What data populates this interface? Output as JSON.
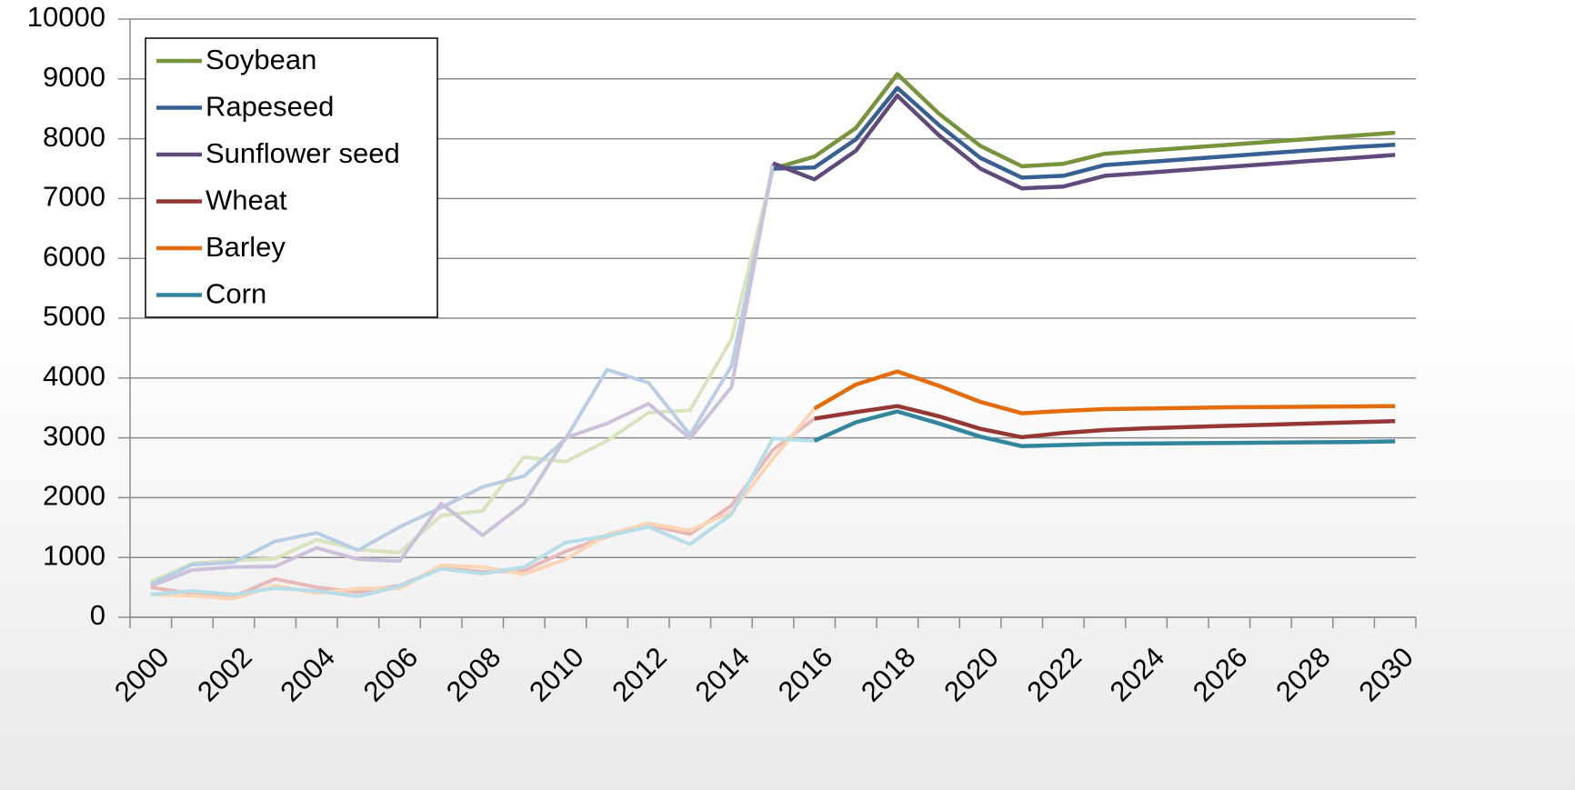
{
  "chart_data": {
    "type": "line",
    "categories": [
      "2000",
      null,
      "2002",
      null,
      "2004",
      null,
      "2006",
      null,
      "2008",
      null,
      "2010",
      null,
      "2012",
      null,
      "2014",
      null,
      "2016",
      null,
      "2018",
      null,
      "2020",
      null,
      "2022",
      null,
      "2024",
      null,
      "2026",
      null,
      "2028",
      null,
      "2030"
    ],
    "ylim": [
      0,
      10000
    ],
    "yticks": [
      0,
      1000,
      2000,
      3000,
      4000,
      5000,
      6000,
      7000,
      8000,
      9000,
      10000
    ],
    "grid": true,
    "legend": "upper left",
    "series": [
      {
        "name": "Soybean",
        "color": "#77933c",
        "history_color": "#d7e4bd",
        "history": [
          590,
          900,
          950,
          980,
          1300,
          1130,
          1080,
          1700,
          1780,
          2680,
          2600,
          2950,
          3420,
          3460,
          4650,
          null,
          null,
          null,
          null,
          null,
          null,
          null,
          null,
          null,
          null,
          null,
          null,
          null,
          null,
          null,
          null
        ],
        "values": [
          null,
          null,
          null,
          null,
          null,
          null,
          null,
          null,
          null,
          null,
          null,
          null,
          null,
          null,
          null,
          7500,
          7700,
          8180,
          9080,
          8420,
          7880,
          7540,
          7580,
          7750,
          7800,
          7850,
          7900,
          7950,
          8000,
          8050,
          8100
        ]
      },
      {
        "name": "Rapeseed",
        "color": "#376092",
        "history_color": "#b9cde5",
        "history": [
          550,
          880,
          920,
          1270,
          1410,
          1120,
          1510,
          1830,
          2180,
          2360,
          2980,
          4140,
          3920,
          3050,
          4200,
          null,
          null,
          null,
          null,
          null,
          null,
          null,
          null,
          null,
          null,
          null,
          null,
          null,
          null,
          null,
          null
        ],
        "values": [
          null,
          null,
          null,
          null,
          null,
          null,
          null,
          null,
          null,
          null,
          null,
          null,
          null,
          null,
          null,
          7500,
          7520,
          7990,
          8850,
          8230,
          7680,
          7350,
          7380,
          7560,
          7610,
          7660,
          7710,
          7760,
          7810,
          7860,
          7900
        ]
      },
      {
        "name": "Sunflower seed",
        "color": "#604a7b",
        "history_color": "#ccc1da",
        "history": [
          520,
          790,
          840,
          850,
          1160,
          970,
          940,
          1900,
          1370,
          1900,
          3000,
          3240,
          3570,
          2990,
          3850,
          null,
          null,
          null,
          null,
          null,
          null,
          null,
          null,
          null,
          null,
          null,
          null,
          null,
          null,
          null,
          null
        ],
        "values": [
          null,
          null,
          null,
          null,
          null,
          null,
          null,
          null,
          null,
          null,
          null,
          null,
          null,
          null,
          null,
          7590,
          7320,
          7800,
          8720,
          8060,
          7500,
          7170,
          7200,
          7380,
          7430,
          7480,
          7530,
          7580,
          7630,
          7680,
          7730
        ]
      },
      {
        "name": "Wheat",
        "color": "#953735",
        "history_color": "#e6b9b8",
        "history": [
          500,
          400,
          350,
          640,
          500,
          420,
          530,
          820,
          760,
          780,
          1100,
          1350,
          1540,
          1390,
          1870,
          2800,
          null,
          null,
          null,
          null,
          null,
          null,
          null,
          null,
          null,
          null,
          null,
          null,
          null,
          null,
          null
        ],
        "values": [
          null,
          null,
          null,
          null,
          null,
          null,
          null,
          null,
          null,
          null,
          null,
          null,
          null,
          null,
          null,
          null,
          3320,
          3430,
          3530,
          3360,
          3150,
          3010,
          3080,
          3130,
          3160,
          3180,
          3200,
          3220,
          3240,
          3260,
          3280
        ]
      },
      {
        "name": "Barley",
        "color": "#e46c0a",
        "history_color": "#fcd5b5",
        "history": [
          380,
          360,
          310,
          530,
          400,
          480,
          480,
          870,
          840,
          720,
          970,
          1380,
          1570,
          1450,
          1760,
          2650,
          null,
          null,
          null,
          null,
          null,
          null,
          null,
          null,
          null,
          null,
          null,
          null,
          null,
          null,
          null
        ],
        "values": [
          null,
          null,
          null,
          null,
          null,
          null,
          null,
          null,
          null,
          null,
          null,
          null,
          null,
          null,
          null,
          null,
          3490,
          3890,
          4110,
          3870,
          3600,
          3410,
          3450,
          3480,
          3490,
          3500,
          3510,
          3515,
          3520,
          3525,
          3530
        ]
      },
      {
        "name": "Corn",
        "color": "#31859c",
        "history_color": "#b7dee8",
        "history": [
          380,
          440,
          380,
          490,
          440,
          350,
          520,
          810,
          730,
          840,
          1250,
          1360,
          1510,
          1220,
          1720,
          2990,
          null,
          null,
          null,
          null,
          null,
          null,
          null,
          null,
          null,
          null,
          null,
          null,
          null,
          null,
          null
        ],
        "values": [
          null,
          null,
          null,
          null,
          null,
          null,
          null,
          null,
          null,
          null,
          null,
          null,
          null,
          null,
          null,
          null,
          2950,
          3260,
          3440,
          3240,
          3020,
          2860,
          2880,
          2900,
          2905,
          2910,
          2915,
          2920,
          2925,
          2930,
          2940
        ]
      }
    ]
  }
}
